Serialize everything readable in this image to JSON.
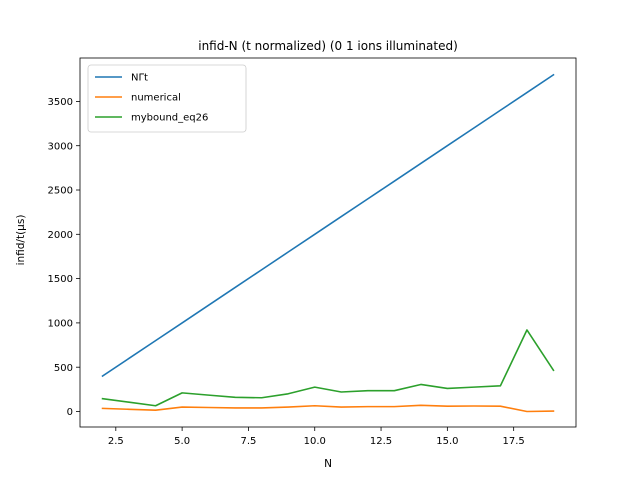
{
  "chart_data": {
    "type": "line",
    "title": "infid-N (t normalized) (0 1 ions illuminated)",
    "xlabel": "N",
    "ylabel": "infid/t(μs)",
    "xlim": [
      1.15,
      19.85
    ],
    "ylim": [
      -175,
      3990
    ],
    "xticks": [
      2.5,
      5.0,
      7.5,
      10.0,
      12.5,
      15.0,
      17.5
    ],
    "xtick_labels": [
      "2.5",
      "5.0",
      "7.5",
      "10.0",
      "12.5",
      "15.0",
      "17.5"
    ],
    "yticks": [
      0,
      500,
      1000,
      1500,
      2000,
      2500,
      3000,
      3500
    ],
    "ytick_labels": [
      "0",
      "500",
      "1000",
      "1500",
      "2000",
      "2500",
      "3000",
      "3500"
    ],
    "grid": false,
    "legend_position": "top-left",
    "x": [
      2,
      3,
      4,
      5,
      6,
      7,
      8,
      9,
      10,
      11,
      12,
      13,
      14,
      15,
      16,
      17,
      18,
      19
    ],
    "series": [
      {
        "name": "NΓt",
        "color": "#1f77b4",
        "values": [
          400,
          600,
          800,
          1000,
          1200,
          1400,
          1600,
          1800,
          2000,
          2200,
          2400,
          2600,
          2800,
          3000,
          3200,
          3400,
          3600,
          3800
        ]
      },
      {
        "name": "numerical",
        "color": "#ff7f0e",
        "values": [
          35,
          25,
          15,
          50,
          45,
          40,
          40,
          50,
          65,
          50,
          55,
          55,
          70,
          60,
          62,
          60,
          0,
          5
        ]
      },
      {
        "name": "mybound_eq26",
        "color": "#2ca02c",
        "values": [
          145,
          105,
          65,
          210,
          185,
          160,
          155,
          200,
          275,
          220,
          235,
          235,
          305,
          260,
          275,
          290,
          920,
          465
        ]
      }
    ]
  }
}
